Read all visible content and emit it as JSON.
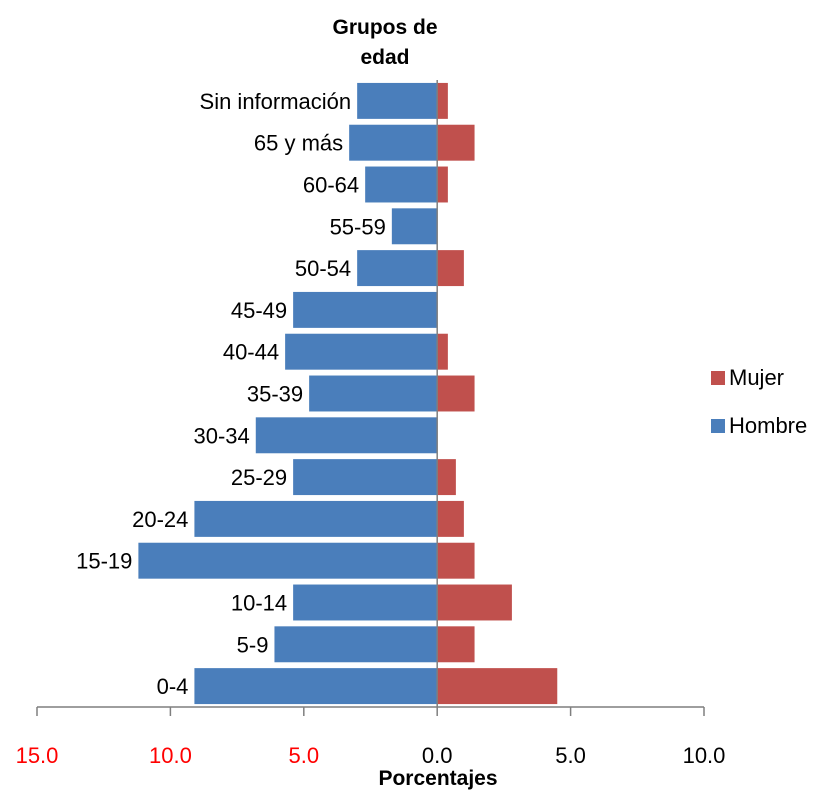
{
  "chart_data": {
    "type": "bar",
    "orientation": "horizontal",
    "title": "Grupos de edad",
    "title_lines": [
      "Grupos de",
      "edad"
    ],
    "xlabel": "Porcentajes",
    "ylabel": "",
    "categories": [
      "Sin información",
      "65 y más",
      "60-64",
      "55-59",
      "50-54",
      "45-49",
      "40-44",
      "35-39",
      "30-34",
      "25-29",
      "20-24",
      "15-19",
      "10-14",
      "5-9",
      "0-4"
    ],
    "series": [
      {
        "name": "Hombre",
        "color": "#4a7ebb",
        "direction": "left",
        "values": [
          3.0,
          3.3,
          2.7,
          1.7,
          3.0,
          5.4,
          5.7,
          4.8,
          6.8,
          5.4,
          9.1,
          11.2,
          5.4,
          6.1,
          9.1
        ]
      },
      {
        "name": "Mujer",
        "color": "#c0504d",
        "direction": "right",
        "values": [
          0.4,
          1.4,
          0.4,
          0.0,
          1.0,
          0.0,
          0.4,
          1.4,
          0.0,
          0.7,
          1.0,
          1.4,
          2.8,
          1.4,
          4.5
        ]
      }
    ],
    "xlim": [
      -15,
      10
    ],
    "ticks": [
      {
        "value": -15,
        "label": "15.0",
        "color": "#ff0000"
      },
      {
        "value": -10,
        "label": "10.0",
        "color": "#ff0000"
      },
      {
        "value": -5,
        "label": "5.0",
        "color": "#ff0000"
      },
      {
        "value": 0,
        "label": "0.0",
        "color": "#000000"
      },
      {
        "value": 5,
        "label": "5.0",
        "color": "#000000"
      },
      {
        "value": 10,
        "label": "10.0",
        "color": "#000000"
      }
    ],
    "legend": {
      "position": "right",
      "order": [
        "Mujer",
        "Hombre"
      ]
    },
    "grid": false
  }
}
